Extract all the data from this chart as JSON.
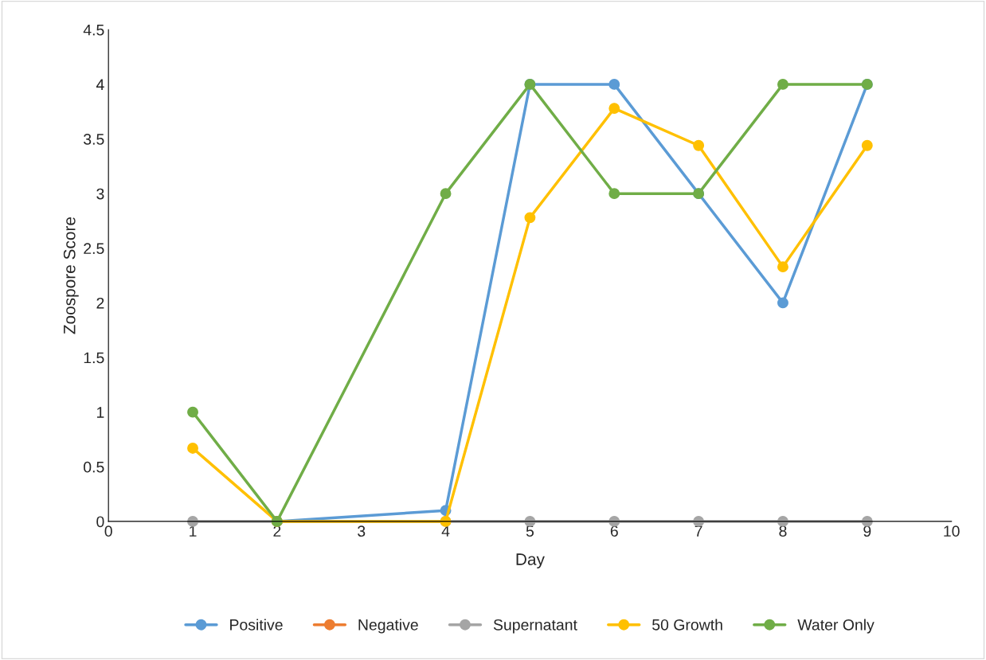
{
  "chart_data": {
    "type": "line",
    "xlabel": "Day",
    "ylabel": "Zoospore Score",
    "x": [
      1,
      2,
      4,
      5,
      6,
      7,
      8,
      9
    ],
    "xlim": [
      0,
      10
    ],
    "xticks": [
      0,
      1,
      2,
      3,
      4,
      5,
      6,
      7,
      8,
      9,
      10
    ],
    "ylim": [
      0,
      4.5
    ],
    "yticks": [
      0,
      0.5,
      1,
      1.5,
      2,
      2.5,
      3,
      3.5,
      4,
      4.5
    ],
    "grid": false,
    "legend": "bottom",
    "marker": "circle",
    "line_style": "solid",
    "series": [
      {
        "name": "Positive",
        "color": "#5b9bd5",
        "values": [
          null,
          0,
          0.1,
          4,
          4,
          3,
          2,
          4
        ]
      },
      {
        "name": "Negative",
        "color": "#ed7d31",
        "values": [
          null,
          null,
          null,
          null,
          null,
          null,
          null,
          null
        ]
      },
      {
        "name": "Supernatant",
        "color": "#a5a5a5",
        "values": [
          0,
          0,
          0,
          0,
          0,
          0,
          0,
          0
        ]
      },
      {
        "name": "50 Growth",
        "color": "#ffc000",
        "values": [
          0.67,
          0,
          0,
          2.78,
          3.78,
          3.44,
          2.33,
          3.44
        ]
      },
      {
        "name": "Water Only",
        "color": "#70ad47",
        "values": [
          1,
          0,
          3,
          4,
          3,
          3,
          4,
          4
        ]
      }
    ]
  }
}
